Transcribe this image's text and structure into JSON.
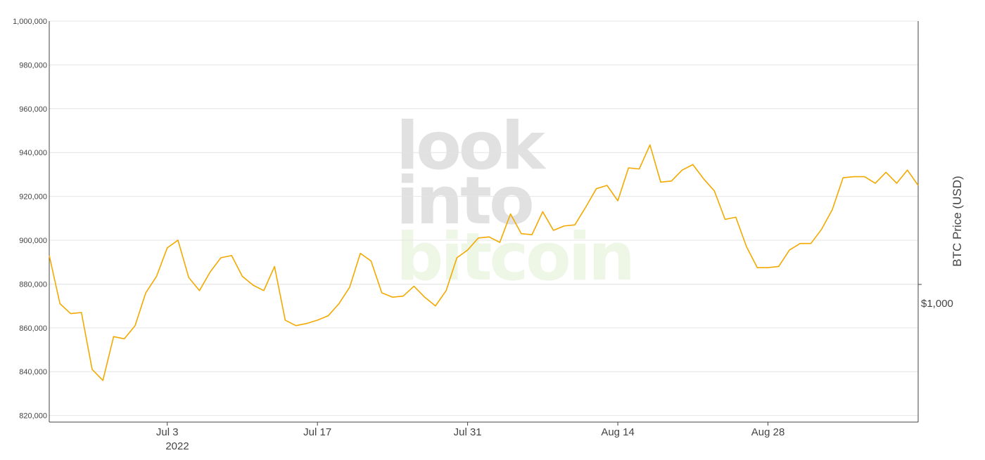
{
  "chart_data": {
    "type": "line",
    "title": "",
    "xlabel": "",
    "ylabel": "",
    "y2label": "BTC Price (USD)",
    "x_tick_labels": [
      "Jul 3",
      "Jul 17",
      "Jul 31",
      "Aug 14",
      "Aug 28"
    ],
    "x_tick_dates": [
      "2022-07-03",
      "2022-07-17",
      "2022-07-31",
      "2022-08-14",
      "2022-08-28"
    ],
    "x_year_label": "2022",
    "xlim": [
      "2022-06-22",
      "2022-09-11"
    ],
    "ylim": [
      817000,
      1000000
    ],
    "y_ticks": [
      820000,
      840000,
      860000,
      880000,
      900000,
      920000,
      940000,
      960000,
      980000,
      1000000
    ],
    "y_tick_labels": [
      "820,000",
      "840,000",
      "860,000",
      "880,000",
      "900,000",
      "920,000",
      "940,000",
      "960,000",
      "980,000",
      "1,000,000"
    ],
    "y2_tick_label": "$1,000",
    "grid": true,
    "line_color": "#f2a900",
    "watermark": [
      "look",
      "into",
      "bitcoin"
    ],
    "series": [
      {
        "x": [
          "2022-06-22",
          "2022-06-23",
          "2022-06-24",
          "2022-06-25",
          "2022-06-26",
          "2022-06-27",
          "2022-06-28",
          "2022-06-29",
          "2022-06-30",
          "2022-07-01",
          "2022-07-02",
          "2022-07-03",
          "2022-07-04",
          "2022-07-05",
          "2022-07-06",
          "2022-07-07",
          "2022-07-08",
          "2022-07-09",
          "2022-07-10",
          "2022-07-11",
          "2022-07-12",
          "2022-07-13",
          "2022-07-14",
          "2022-07-15",
          "2022-07-16",
          "2022-07-17",
          "2022-07-18",
          "2022-07-19",
          "2022-07-20",
          "2022-07-21",
          "2022-07-22",
          "2022-07-23",
          "2022-07-24",
          "2022-07-25",
          "2022-07-26",
          "2022-07-27",
          "2022-07-28",
          "2022-07-29",
          "2022-07-30",
          "2022-07-31",
          "2022-08-01",
          "2022-08-02",
          "2022-08-03",
          "2022-08-04",
          "2022-08-05",
          "2022-08-06",
          "2022-08-07",
          "2022-08-08",
          "2022-08-09",
          "2022-08-10",
          "2022-08-11",
          "2022-08-12",
          "2022-08-13",
          "2022-08-14",
          "2022-08-15",
          "2022-08-16",
          "2022-08-17",
          "2022-08-18",
          "2022-08-19",
          "2022-08-20",
          "2022-08-21",
          "2022-08-22",
          "2022-08-23",
          "2022-08-24",
          "2022-08-25",
          "2022-08-26",
          "2022-08-27",
          "2022-08-28",
          "2022-08-29",
          "2022-08-30",
          "2022-08-31",
          "2022-09-01",
          "2022-09-02",
          "2022-09-03",
          "2022-09-04",
          "2022-09-05",
          "2022-09-06",
          "2022-09-07",
          "2022-09-08",
          "2022-09-09",
          "2022-09-10",
          "2022-09-11"
        ],
        "y": [
          893000,
          871000,
          866500,
          867000,
          841000,
          836000,
          856000,
          855000,
          861000,
          876000,
          883500,
          896500,
          900000,
          883000,
          877000,
          885500,
          892000,
          893000,
          883500,
          879500,
          877000,
          888000,
          863500,
          861000,
          862000,
          863500,
          865500,
          871000,
          878500,
          894000,
          890500,
          876000,
          874000,
          874500,
          879000,
          874000,
          870000,
          877000,
          892000,
          895500,
          901000,
          901500,
          899000,
          912000,
          903000,
          902500,
          913000,
          904500,
          906500,
          907000,
          915000,
          923500,
          925000,
          918000,
          933000,
          932500,
          943500,
          926500,
          927000,
          932000,
          934500,
          928000,
          922500,
          909500,
          910500,
          897000,
          887500,
          887500,
          888000,
          895500,
          898500,
          898500,
          905000,
          914000,
          928500,
          929000,
          929000,
          926000,
          931000,
          926000,
          932000,
          925000
        ]
      }
    ]
  }
}
